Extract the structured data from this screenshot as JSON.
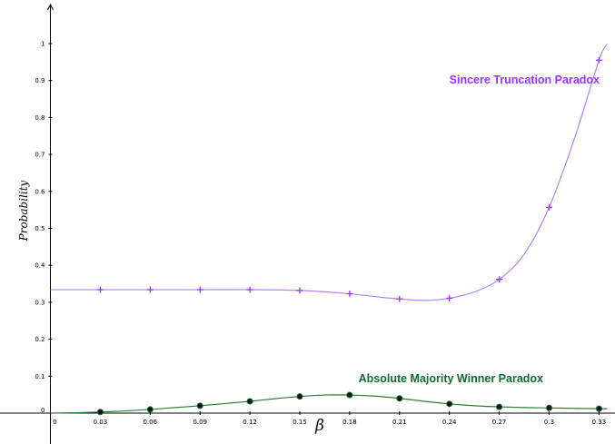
{
  "chart_data": {
    "type": "line",
    "xlabel": "β",
    "ylabel": "Probability",
    "xlim": [
      0,
      0.335
    ],
    "ylim": [
      -0.02,
      1.1
    ],
    "x_ticks": [
      "0",
      "0.03",
      "0.06",
      "0.09",
      "0.12",
      "0.15",
      "0.18",
      "0.21",
      "0.24",
      "0.27",
      "0.3",
      "0.33"
    ],
    "y_ticks": [
      "0",
      "0.1",
      "0.2",
      "0.3",
      "0.4",
      "0.5",
      "0.6",
      "0.7",
      "0.8",
      "0.9",
      "1"
    ],
    "grid": false,
    "series": [
      {
        "name": "Sincere Truncation Paradox",
        "color": "#9933FF",
        "curve_color": "#B184F2",
        "marker": "plus",
        "points": {
          "x": [
            0.03,
            0.06,
            0.09,
            0.12,
            0.15,
            0.18,
            0.21,
            0.24,
            0.27,
            0.3,
            0.33
          ],
          "y": [
            0.334,
            0.334,
            0.334,
            0.334,
            0.332,
            0.323,
            0.309,
            0.311,
            0.362,
            0.557,
            0.955
          ]
        },
        "curve": {
          "x": [
            0,
            0.03,
            0.06,
            0.09,
            0.12,
            0.15,
            0.18,
            0.2,
            0.21,
            0.225,
            0.24,
            0.255,
            0.27,
            0.285,
            0.3,
            0.315,
            0.33,
            0.335
          ],
          "y": [
            0.334,
            0.334,
            0.334,
            0.334,
            0.334,
            0.332,
            0.323,
            0.313,
            0.309,
            0.305,
            0.311,
            0.328,
            0.362,
            0.43,
            0.557,
            0.74,
            0.955,
            1.0
          ]
        }
      },
      {
        "name": "Absolute Majority Winner Paradox",
        "color": "#0E6B2E",
        "curve_color": "#2E7D32",
        "marker": "dot",
        "points": {
          "x": [
            0.03,
            0.06,
            0.09,
            0.12,
            0.15,
            0.18,
            0.21,
            0.24,
            0.27,
            0.3,
            0.33
          ],
          "y": [
            0.003,
            0.01,
            0.02,
            0.032,
            0.045,
            0.049,
            0.04,
            0.025,
            0.017,
            0.014,
            0.012
          ]
        },
        "curve": {
          "x": [
            0,
            0.015,
            0.03,
            0.045,
            0.06,
            0.075,
            0.09,
            0.105,
            0.12,
            0.135,
            0.15,
            0.165,
            0.18,
            0.195,
            0.21,
            0.225,
            0.24,
            0.255,
            0.27,
            0.285,
            0.3,
            0.315,
            0.33,
            0.335
          ],
          "y": [
            0,
            0.001,
            0.003,
            0.006,
            0.01,
            0.015,
            0.02,
            0.026,
            0.032,
            0.039,
            0.045,
            0.049,
            0.049,
            0.046,
            0.04,
            0.032,
            0.025,
            0.02,
            0.017,
            0.015,
            0.014,
            0.013,
            0.012,
            0.012
          ]
        }
      }
    ]
  }
}
